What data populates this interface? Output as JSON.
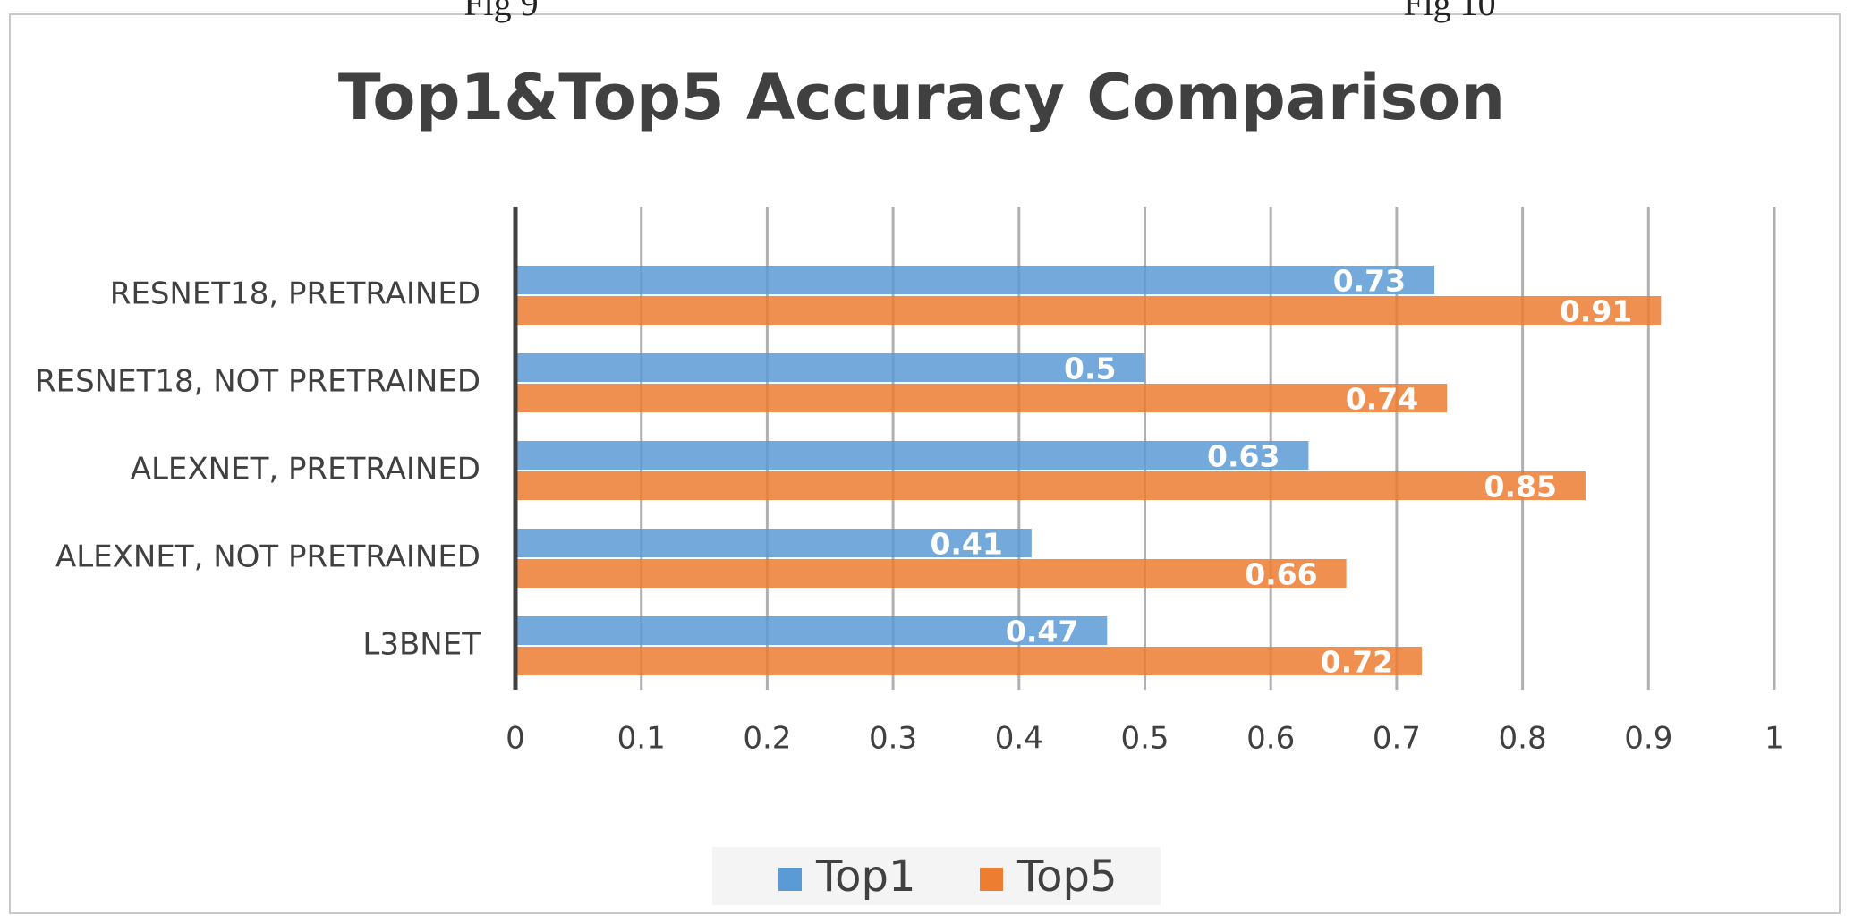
{
  "chart_data": {
    "type": "bar",
    "orientation": "horizontal",
    "title": "Top1&Top5 Accuracy Comparison",
    "annotations": [
      "Fig 9",
      "Fig 10"
    ],
    "categories": [
      "RESNET18, PRETRAINED",
      "RESNET18, NOT PRETRAINED",
      "ALEXNET, PRETRAINED",
      "ALEXNET, NOT PRETRAINED",
      "L3BNET"
    ],
    "series": [
      {
        "name": "Top1",
        "color": "#5b9bd5",
        "values": [
          0.73,
          0.5,
          0.63,
          0.41,
          0.47
        ]
      },
      {
        "name": "Top5",
        "color": "#ed7d31",
        "values": [
          0.91,
          0.74,
          0.85,
          0.66,
          0.72
        ]
      }
    ],
    "xlim": [
      0,
      1
    ],
    "xticks": [
      0,
      0.1,
      0.2,
      0.3,
      0.4,
      0.5,
      0.6,
      0.7,
      0.8,
      0.9,
      1
    ],
    "grid": true,
    "legend": "bottom"
  }
}
